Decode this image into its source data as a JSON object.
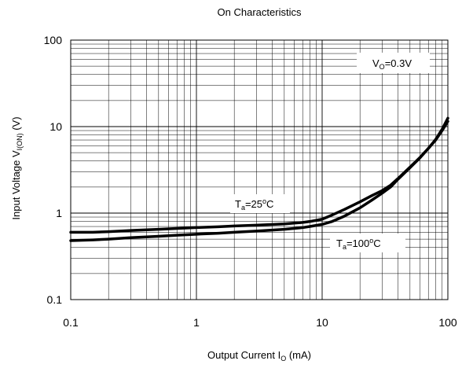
{
  "chart_data": {
    "type": "line",
    "title": "On Characteristics",
    "xlabel": {
      "main": "Output Current  I",
      "sub": "O",
      "unit": " (mA)"
    },
    "ylabel": {
      "main": "Input Voltage V",
      "sub": "I(ON)",
      "unit": " (V)"
    },
    "xscale": "log",
    "yscale": "log",
    "xlim": [
      0.1,
      100
    ],
    "ylim": [
      0.1,
      100
    ],
    "grid": true,
    "x_tick_labels": [
      "0.1",
      "1",
      "10",
      "100"
    ],
    "y_tick_labels": [
      "0.1",
      "1",
      "10",
      "100"
    ],
    "annotations": {
      "vo": {
        "main": "V",
        "sub": "O",
        "rest": "=0.3V"
      },
      "ta25": {
        "main": "T",
        "sub": "a",
        "rest": "=25",
        "sup": "o",
        "tail": "C"
      },
      "ta100": {
        "main": "T",
        "sub": "a",
        "rest": "=100",
        "sup": "o",
        "tail": "C"
      }
    },
    "series": [
      {
        "x": [
          0.1,
          0.15,
          0.2,
          0.3,
          0.5,
          0.7,
          1,
          1.5,
          2,
          3,
          5,
          7,
          8,
          10,
          12,
          15,
          20,
          25,
          30,
          35,
          40,
          50,
          60,
          70,
          80,
          90,
          100
        ],
        "y": [
          0.6,
          0.6,
          0.61,
          0.63,
          0.65,
          0.665,
          0.68,
          0.695,
          0.71,
          0.725,
          0.75,
          0.78,
          0.8,
          0.85,
          0.95,
          1.1,
          1.35,
          1.6,
          1.82,
          2.1,
          2.5,
          3.4,
          4.4,
          5.6,
          7.0,
          9.0,
          11.5
        ]
      },
      {
        "x": [
          0.1,
          0.15,
          0.2,
          0.3,
          0.5,
          0.7,
          1,
          1.5,
          2,
          3,
          5,
          7,
          8,
          10,
          12,
          15,
          20,
          25,
          30,
          35,
          40,
          50,
          60,
          70,
          80,
          90,
          100
        ],
        "y": [
          0.48,
          0.49,
          0.5,
          0.52,
          0.54,
          0.555,
          0.57,
          0.585,
          0.6,
          0.62,
          0.65,
          0.68,
          0.7,
          0.74,
          0.8,
          0.92,
          1.15,
          1.42,
          1.7,
          2.0,
          2.45,
          3.35,
          4.35,
          5.6,
          7.1,
          9.3,
          12.5
        ]
      }
    ]
  }
}
